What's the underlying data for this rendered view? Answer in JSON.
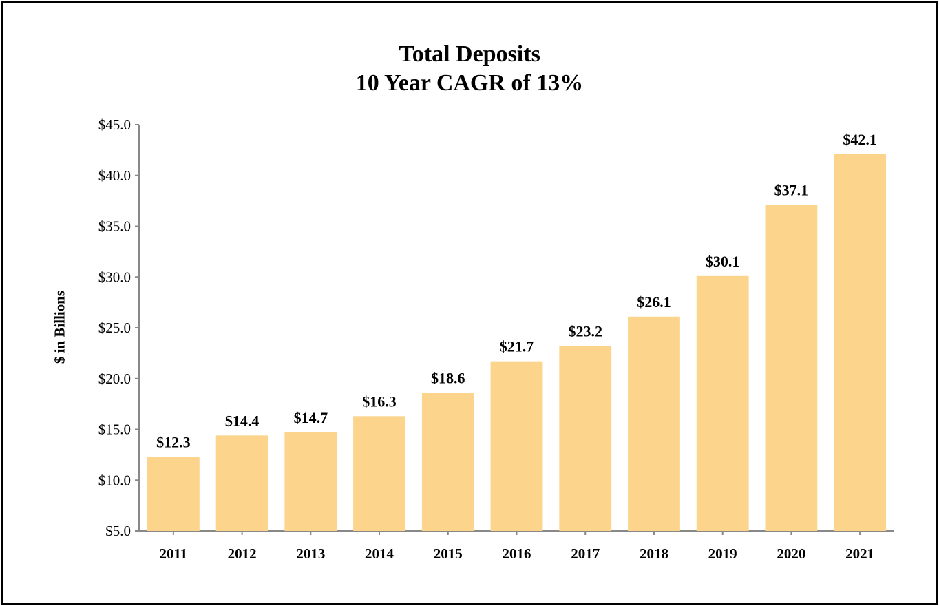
{
  "chart_data": {
    "type": "bar",
    "title": "Total Deposits",
    "subtitle": "10 Year CAGR of 13%",
    "xlabel": "",
    "ylabel": "$ in Billions",
    "categories": [
      "2011",
      "2012",
      "2013",
      "2014",
      "2015",
      "2016",
      "2017",
      "2018",
      "2019",
      "2020",
      "2021"
    ],
    "values": [
      12.3,
      14.4,
      14.7,
      16.3,
      18.6,
      21.7,
      23.2,
      26.1,
      30.1,
      37.1,
      42.1
    ],
    "data_labels": [
      "$12.3",
      "$14.4",
      "$14.7",
      "$16.3",
      "$18.6",
      "$21.7",
      "$23.2",
      "$26.1",
      "$30.1",
      "$37.1",
      "$42.1"
    ],
    "ylim": [
      5,
      45
    ],
    "yticks": [
      5,
      10,
      15,
      20,
      25,
      30,
      35,
      40,
      45
    ],
    "ytick_labels": [
      "$5.0",
      "$10.0",
      "$15.0",
      "$20.0",
      "$25.0",
      "$30.0",
      "$35.0",
      "$40.0",
      "$45.0"
    ],
    "grid": false,
    "legend": "none",
    "colors": {
      "bar": "#FCD48C",
      "axis": "#888888",
      "text": "#000000"
    }
  }
}
